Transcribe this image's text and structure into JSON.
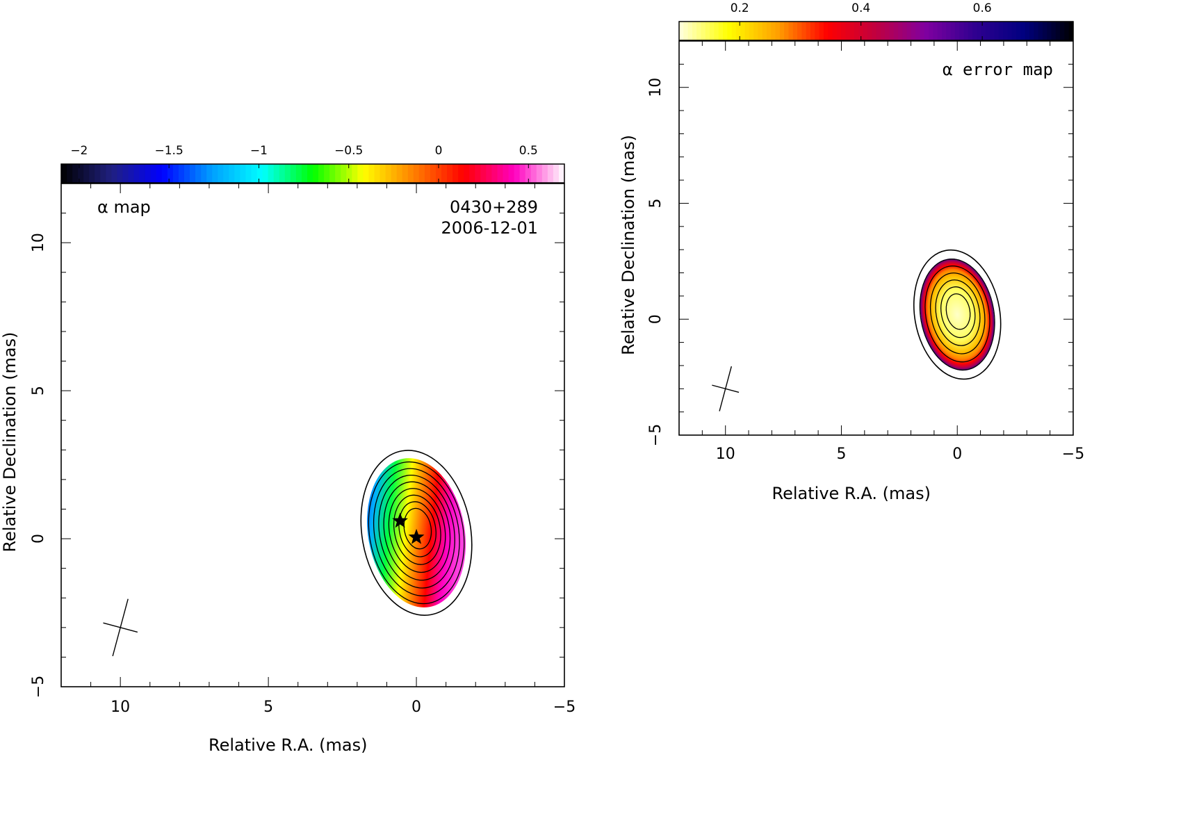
{
  "chart_data": [
    {
      "type": "heatmap",
      "annotation": "α map",
      "source": "0430+289",
      "date": "2006-12-01",
      "xlabel": "Relative R.A. (mas)",
      "ylabel": "Relative Declination (mas)",
      "xlim": [
        12,
        -5
      ],
      "ylim": [
        -5,
        12
      ],
      "x_ticks": [
        10,
        5,
        0,
        -5
      ],
      "x_tick_labels": [
        "10",
        "5",
        "0",
        "−5"
      ],
      "y_ticks": [
        -5,
        0,
        5,
        10
      ],
      "y_tick_labels": [
        "−5",
        "0",
        "5",
        "10"
      ],
      "colorbar": {
        "range": [
          -2.1,
          0.7
        ],
        "ticks": [
          -2,
          -1.5,
          -1,
          -0.5,
          0,
          0.5
        ],
        "tick_labels": [
          "−2",
          "−1.5",
          "−1",
          "−0.5",
          "0",
          "0.5"
        ],
        "colors": [
          "#000000",
          "#202080",
          "#0000ff",
          "#00a0ff",
          "#00ffff",
          "#00ff00",
          "#ffff00",
          "#ff8000",
          "#ff0000",
          "#ff00c0",
          "#ffffff"
        ]
      },
      "emission": {
        "center_x": 0,
        "center_y": 0.2,
        "contour_levels": 9
      },
      "beam": {
        "x": 10,
        "y": -3,
        "major_mas": 2.0,
        "minor_mas": 1.2
      },
      "core_markers": [
        {
          "x": 0.55,
          "y": 0.6
        },
        {
          "x": 0,
          "y": 0.05
        }
      ]
    },
    {
      "type": "heatmap",
      "annotation": "α error map",
      "xlabel": "Relative R.A. (mas)",
      "ylabel": "Relative Declination (mas)",
      "xlim": [
        12,
        -5
      ],
      "ylim": [
        -5,
        12
      ],
      "x_ticks": [
        10,
        5,
        0,
        -5
      ],
      "x_tick_labels": [
        "10",
        "5",
        "0",
        "−5"
      ],
      "y_ticks": [
        -5,
        0,
        5,
        10
      ],
      "y_tick_labels": [
        "−5",
        "0",
        "5",
        "10"
      ],
      "colorbar": {
        "range": [
          0.1,
          0.75
        ],
        "ticks": [
          0.2,
          0.4,
          0.6
        ],
        "tick_labels": [
          "0.2",
          "0.4",
          "0.6"
        ],
        "colors": [
          "#ffffe0",
          "#ffff00",
          "#ffa000",
          "#ff0000",
          "#c00040",
          "#8000a0",
          "#300090",
          "#000080",
          "#000000"
        ]
      },
      "emission": {
        "center_x": 0,
        "center_y": 0.2,
        "contour_levels": 7
      },
      "beam": {
        "x": 10,
        "y": -3,
        "major_mas": 2.0,
        "minor_mas": 1.2
      }
    }
  ]
}
